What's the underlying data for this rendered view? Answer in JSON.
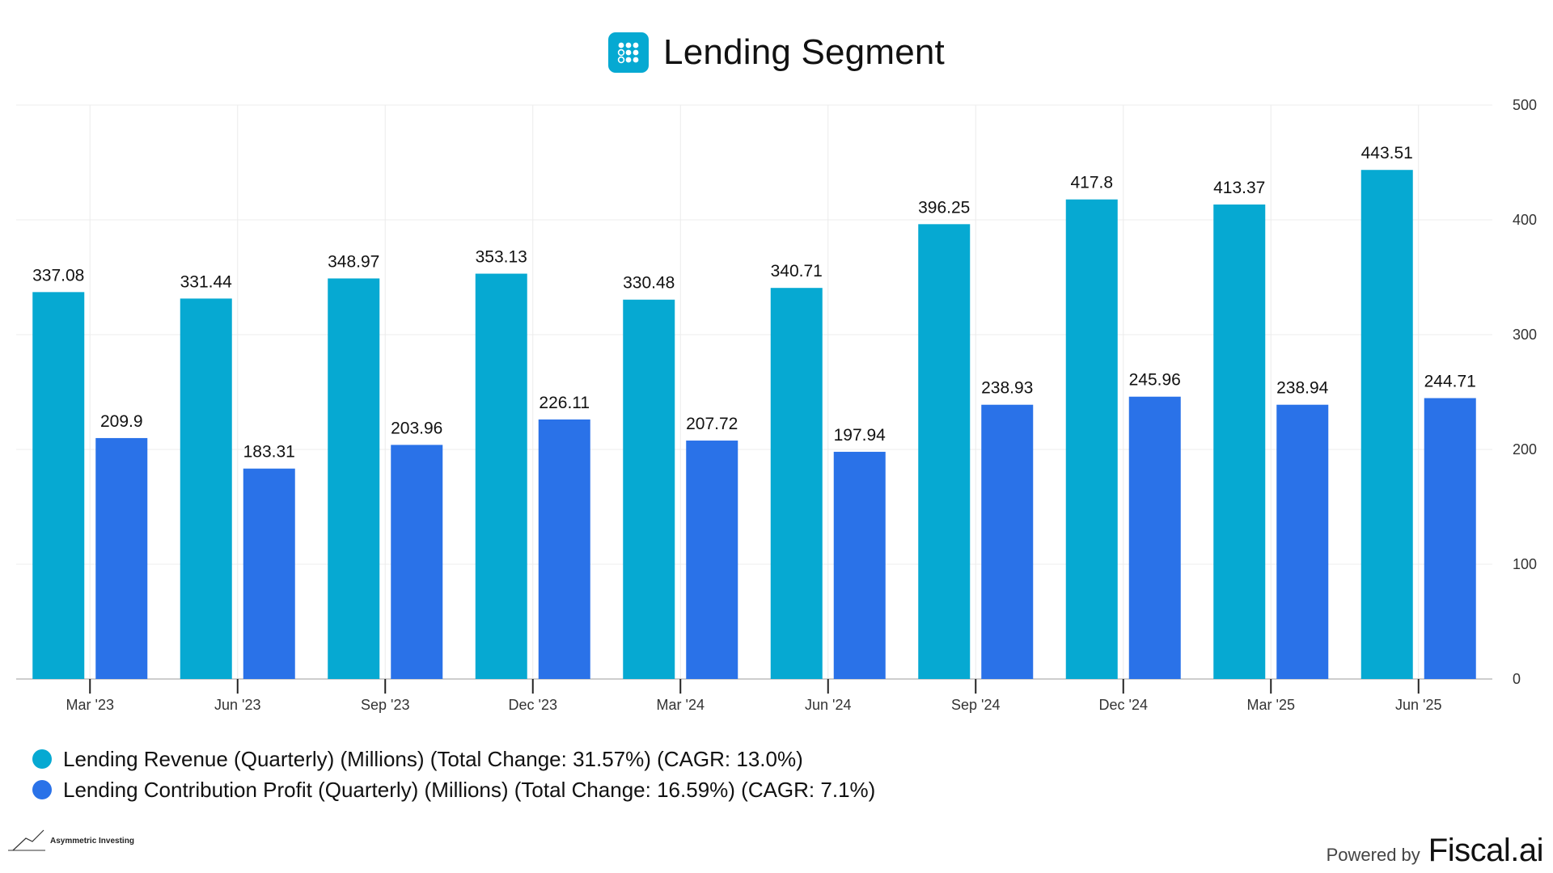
{
  "header": {
    "title": "Lending Segment",
    "logo_icon": "dots-grid-icon"
  },
  "colors": {
    "revenue": "#06a9d2",
    "profit": "#2a72e8",
    "grid": "#ececec",
    "axis": "#9a9a9a"
  },
  "chart_data": {
    "type": "bar",
    "title": "Lending Segment",
    "categories": [
      "Mar '23",
      "Jun '23",
      "Sep '23",
      "Dec '23",
      "Mar '24",
      "Jun '24",
      "Sep '24",
      "Dec '24",
      "Mar '25",
      "Jun '25"
    ],
    "series": [
      {
        "name": "Lending Revenue (Quarterly) (Millions) (Total Change: 31.57%) (CAGR: 13.0%)",
        "values": [
          337.08,
          331.44,
          348.97,
          353.13,
          330.48,
          340.71,
          396.25,
          417.8,
          413.37,
          443.51
        ],
        "labels": [
          "337.08",
          "331.44",
          "348.97",
          "353.13",
          "330.48",
          "340.71",
          "396.25",
          "417.8",
          "413.37",
          "443.51"
        ]
      },
      {
        "name": "Lending Contribution Profit (Quarterly) (Millions) (Total Change: 16.59%) (CAGR: 7.1%)",
        "values": [
          209.9,
          183.31,
          203.96,
          226.11,
          207.72,
          197.94,
          238.93,
          245.96,
          238.94,
          244.71
        ],
        "labels": [
          "209.9",
          "183.31",
          "203.96",
          "226.11",
          "207.72",
          "197.94",
          "238.93",
          "245.96",
          "238.94",
          "244.71"
        ]
      }
    ],
    "ylim": [
      0,
      500
    ],
    "yticks": [
      "0",
      "100",
      "200",
      "300",
      "400",
      "500"
    ],
    "yaxis_position": "right",
    "xlabel": "",
    "ylabel": "",
    "grid": true,
    "legend_position": "bottom-left"
  },
  "legend": [
    {
      "label": "Lending Revenue (Quarterly) (Millions) (Total Change: 31.57%) (CAGR: 13.0%)"
    },
    {
      "label": "Lending Contribution Profit (Quarterly) (Millions) (Total Change: 16.59%) (CAGR: 7.1%)"
    }
  ],
  "footer": {
    "watermark": "Asymmetric Investing",
    "powered_by": "Powered by",
    "brand": "Fiscal.ai"
  }
}
